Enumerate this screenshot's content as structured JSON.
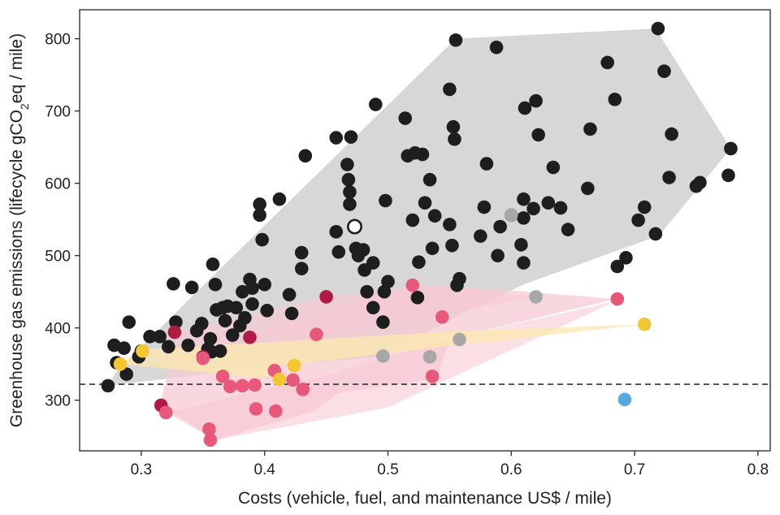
{
  "chart_data": {
    "type": "scatter",
    "title": "",
    "xlabel": "Costs (vehicle, fuel, and maintenance US$ / mile)",
    "ylabel_parts": [
      "Greenhouse gas emissions (lifecycle gCO",
      "2",
      "eq / mile)"
    ],
    "xlim": [
      0.25,
      0.81
    ],
    "ylim": [
      230,
      840
    ],
    "xticks": [
      0.3,
      0.4,
      0.5,
      0.6,
      0.7,
      0.8
    ],
    "xtick_labels": [
      "0.3",
      "0.4",
      "0.5",
      "0.6",
      "0.7",
      "0.8"
    ],
    "yticks": [
      300,
      400,
      500,
      600,
      700,
      800
    ],
    "ytick_labels": [
      "300",
      "400",
      "500",
      "600",
      "700",
      "800"
    ],
    "reference_line": {
      "y": 322,
      "style": "dashed"
    },
    "colors": {
      "black": "#1e1e1e",
      "gray": "#a7a7a7",
      "red": "#e8587a",
      "darkred": "#b01a44",
      "yellow": "#f5c633",
      "blue": "#56a8e2",
      "gray_hull": "#d7d7d7",
      "pink_hull": "#f7c9d3",
      "yellow_hull": "#fbe8ad"
    },
    "regions": [
      {
        "name": "gray",
        "fill": "#d7d7d7",
        "opacity": 1.0,
        "points": [
          [
            0.273,
            320
          ],
          [
            0.28,
            340
          ],
          [
            0.345,
            450
          ],
          [
            0.555,
            800
          ],
          [
            0.717,
            814
          ],
          [
            0.778,
            648
          ],
          [
            0.72,
            528
          ],
          [
            0.61,
            460
          ],
          [
            0.56,
            420
          ],
          [
            0.495,
            360
          ],
          [
            0.42,
            350
          ]
        ]
      },
      {
        "name": "pink-main",
        "fill": "#f7c9d3",
        "opacity": 0.75,
        "points": [
          [
            0.315,
            293
          ],
          [
            0.36,
            245
          ],
          [
            0.44,
            285
          ],
          [
            0.46,
            310
          ],
          [
            0.54,
            330
          ],
          [
            0.55,
            385
          ],
          [
            0.685,
            440
          ],
          [
            0.54,
            460
          ],
          [
            0.45,
            443
          ],
          [
            0.33,
            395
          ]
        ]
      },
      {
        "name": "pink-upper",
        "fill": "#f7c9d3",
        "opacity": 0.55,
        "points": [
          [
            0.39,
            390
          ],
          [
            0.52,
            460
          ],
          [
            0.62,
            443
          ],
          [
            0.5,
            405
          ],
          [
            0.43,
            385
          ]
        ]
      },
      {
        "name": "pink-lower",
        "fill": "#f7c9d3",
        "opacity": 0.6,
        "points": [
          [
            0.32,
            283
          ],
          [
            0.36,
            245
          ],
          [
            0.5,
            290
          ],
          [
            0.685,
            437
          ],
          [
            0.55,
            385
          ],
          [
            0.45,
            335
          ]
        ]
      },
      {
        "name": "yellow",
        "fill": "#fbe8ad",
        "opacity": 0.75,
        "points": [
          [
            0.283,
            350
          ],
          [
            0.3,
            370
          ],
          [
            0.55,
            395
          ],
          [
            0.708,
            405
          ],
          [
            0.55,
            375
          ],
          [
            0.41,
            347
          ],
          [
            0.4,
            330
          ]
        ]
      }
    ],
    "series": [
      {
        "name": "black",
        "color": "#1e1e1e",
        "points": [
          [
            0.273,
            320
          ],
          [
            0.278,
            376
          ],
          [
            0.28,
            352
          ],
          [
            0.286,
            372
          ],
          [
            0.288,
            336
          ],
          [
            0.29,
            408
          ],
          [
            0.298,
            360
          ],
          [
            0.3,
            368
          ],
          [
            0.307,
            388
          ],
          [
            0.315,
            388
          ],
          [
            0.322,
            374
          ],
          [
            0.326,
            461
          ],
          [
            0.328,
            408
          ],
          [
            0.338,
            376
          ],
          [
            0.341,
            456
          ],
          [
            0.345,
            396
          ],
          [
            0.349,
            406
          ],
          [
            0.354,
            371
          ],
          [
            0.356,
            385
          ],
          [
            0.357,
            367
          ],
          [
            0.358,
            488
          ],
          [
            0.36,
            460
          ],
          [
            0.361,
            425
          ],
          [
            0.364,
            368
          ],
          [
            0.366,
            428
          ],
          [
            0.368,
            410
          ],
          [
            0.37,
            430
          ],
          [
            0.374,
            390
          ],
          [
            0.377,
            428
          ],
          [
            0.38,
            403
          ],
          [
            0.382,
            450
          ],
          [
            0.384,
            414
          ],
          [
            0.388,
            467
          ],
          [
            0.39,
            455
          ],
          [
            0.39,
            433
          ],
          [
            0.396,
            571
          ],
          [
            0.396,
            556
          ],
          [
            0.398,
            522
          ],
          [
            0.4,
            460
          ],
          [
            0.402,
            424
          ],
          [
            0.412,
            578
          ],
          [
            0.42,
            446
          ],
          [
            0.422,
            420
          ],
          [
            0.43,
            482
          ],
          [
            0.43,
            504
          ],
          [
            0.433,
            638
          ],
          [
            0.458,
            663
          ],
          [
            0.458,
            533
          ],
          [
            0.46,
            505
          ],
          [
            0.467,
            626
          ],
          [
            0.468,
            605
          ],
          [
            0.469,
            571
          ],
          [
            0.469,
            588
          ],
          [
            0.47,
            664
          ],
          [
            0.474,
            510
          ],
          [
            0.476,
            500
          ],
          [
            0.48,
            508
          ],
          [
            0.481,
            480
          ],
          [
            0.483,
            450
          ],
          [
            0.488,
            490
          ],
          [
            0.488,
            428
          ],
          [
            0.49,
            709
          ],
          [
            0.496,
            408
          ],
          [
            0.497,
            450
          ],
          [
            0.498,
            576
          ],
          [
            0.5,
            464
          ],
          [
            0.514,
            690
          ],
          [
            0.516,
            638
          ],
          [
            0.52,
            549
          ],
          [
            0.522,
            642
          ],
          [
            0.524,
            442
          ],
          [
            0.525,
            491
          ],
          [
            0.528,
            640
          ],
          [
            0.53,
            573
          ],
          [
            0.534,
            605
          ],
          [
            0.536,
            510
          ],
          [
            0.538,
            555
          ],
          [
            0.55,
            730
          ],
          [
            0.55,
            543
          ],
          [
            0.552,
            514
          ],
          [
            0.553,
            678
          ],
          [
            0.554,
            661
          ],
          [
            0.555,
            798
          ],
          [
            0.556,
            459
          ],
          [
            0.558,
            468
          ],
          [
            0.578,
            567
          ],
          [
            0.575,
            527
          ],
          [
            0.58,
            627
          ],
          [
            0.588,
            788
          ],
          [
            0.589,
            500
          ],
          [
            0.591,
            540
          ],
          [
            0.6,
            556
          ],
          [
            0.608,
            515
          ],
          [
            0.61,
            490
          ],
          [
            0.61,
            578
          ],
          [
            0.61,
            552
          ],
          [
            0.611,
            704
          ],
          [
            0.618,
            565
          ],
          [
            0.62,
            714
          ],
          [
            0.622,
            667
          ],
          [
            0.63,
            573
          ],
          [
            0.634,
            622
          ],
          [
            0.64,
            566
          ],
          [
            0.646,
            536
          ],
          [
            0.662,
            593
          ],
          [
            0.664,
            675
          ],
          [
            0.678,
            767
          ],
          [
            0.684,
            716
          ],
          [
            0.686,
            485
          ],
          [
            0.693,
            497
          ],
          [
            0.703,
            549
          ],
          [
            0.708,
            567
          ],
          [
            0.717,
            530
          ],
          [
            0.719,
            814
          ],
          [
            0.724,
            755
          ],
          [
            0.728,
            608
          ],
          [
            0.73,
            668
          ],
          [
            0.75,
            596
          ],
          [
            0.753,
            601
          ],
          [
            0.776,
            611
          ],
          [
            0.778,
            648
          ]
        ]
      },
      {
        "name": "gray",
        "color": "#a7a7a7",
        "points": [
          [
            0.496,
            361
          ],
          [
            0.534,
            360
          ],
          [
            0.558,
            384
          ],
          [
            0.6,
            556
          ],
          [
            0.62,
            443
          ]
        ]
      },
      {
        "name": "darkred",
        "color": "#b01a44",
        "points": [
          [
            0.316,
            293
          ],
          [
            0.327,
            394
          ],
          [
            0.35,
            360
          ],
          [
            0.388,
            387
          ],
          [
            0.45,
            443
          ]
        ]
      },
      {
        "name": "red",
        "color": "#e8587a",
        "points": [
          [
            0.32,
            283
          ],
          [
            0.35,
            358
          ],
          [
            0.355,
            260
          ],
          [
            0.356,
            245
          ],
          [
            0.366,
            333
          ],
          [
            0.372,
            319
          ],
          [
            0.382,
            320
          ],
          [
            0.392,
            321
          ],
          [
            0.393,
            288
          ],
          [
            0.408,
            341
          ],
          [
            0.409,
            285
          ],
          [
            0.423,
            328
          ],
          [
            0.431,
            315
          ],
          [
            0.442,
            391
          ],
          [
            0.52,
            459
          ],
          [
            0.536,
            333
          ],
          [
            0.544,
            415
          ],
          [
            0.686,
            440
          ]
        ]
      },
      {
        "name": "yellow",
        "color": "#f5c633",
        "points": [
          [
            0.283,
            350
          ],
          [
            0.301,
            368
          ],
          [
            0.412,
            329
          ],
          [
            0.424,
            348
          ],
          [
            0.708,
            405
          ]
        ]
      },
      {
        "name": "blue",
        "color": "#56a8e2",
        "points": [
          [
            0.692,
            301
          ]
        ]
      }
    ],
    "highlight": {
      "x": 0.473,
      "y": 540,
      "style": "open circle",
      "color": "#ffffff",
      "stroke": "#1e1e1e"
    }
  }
}
